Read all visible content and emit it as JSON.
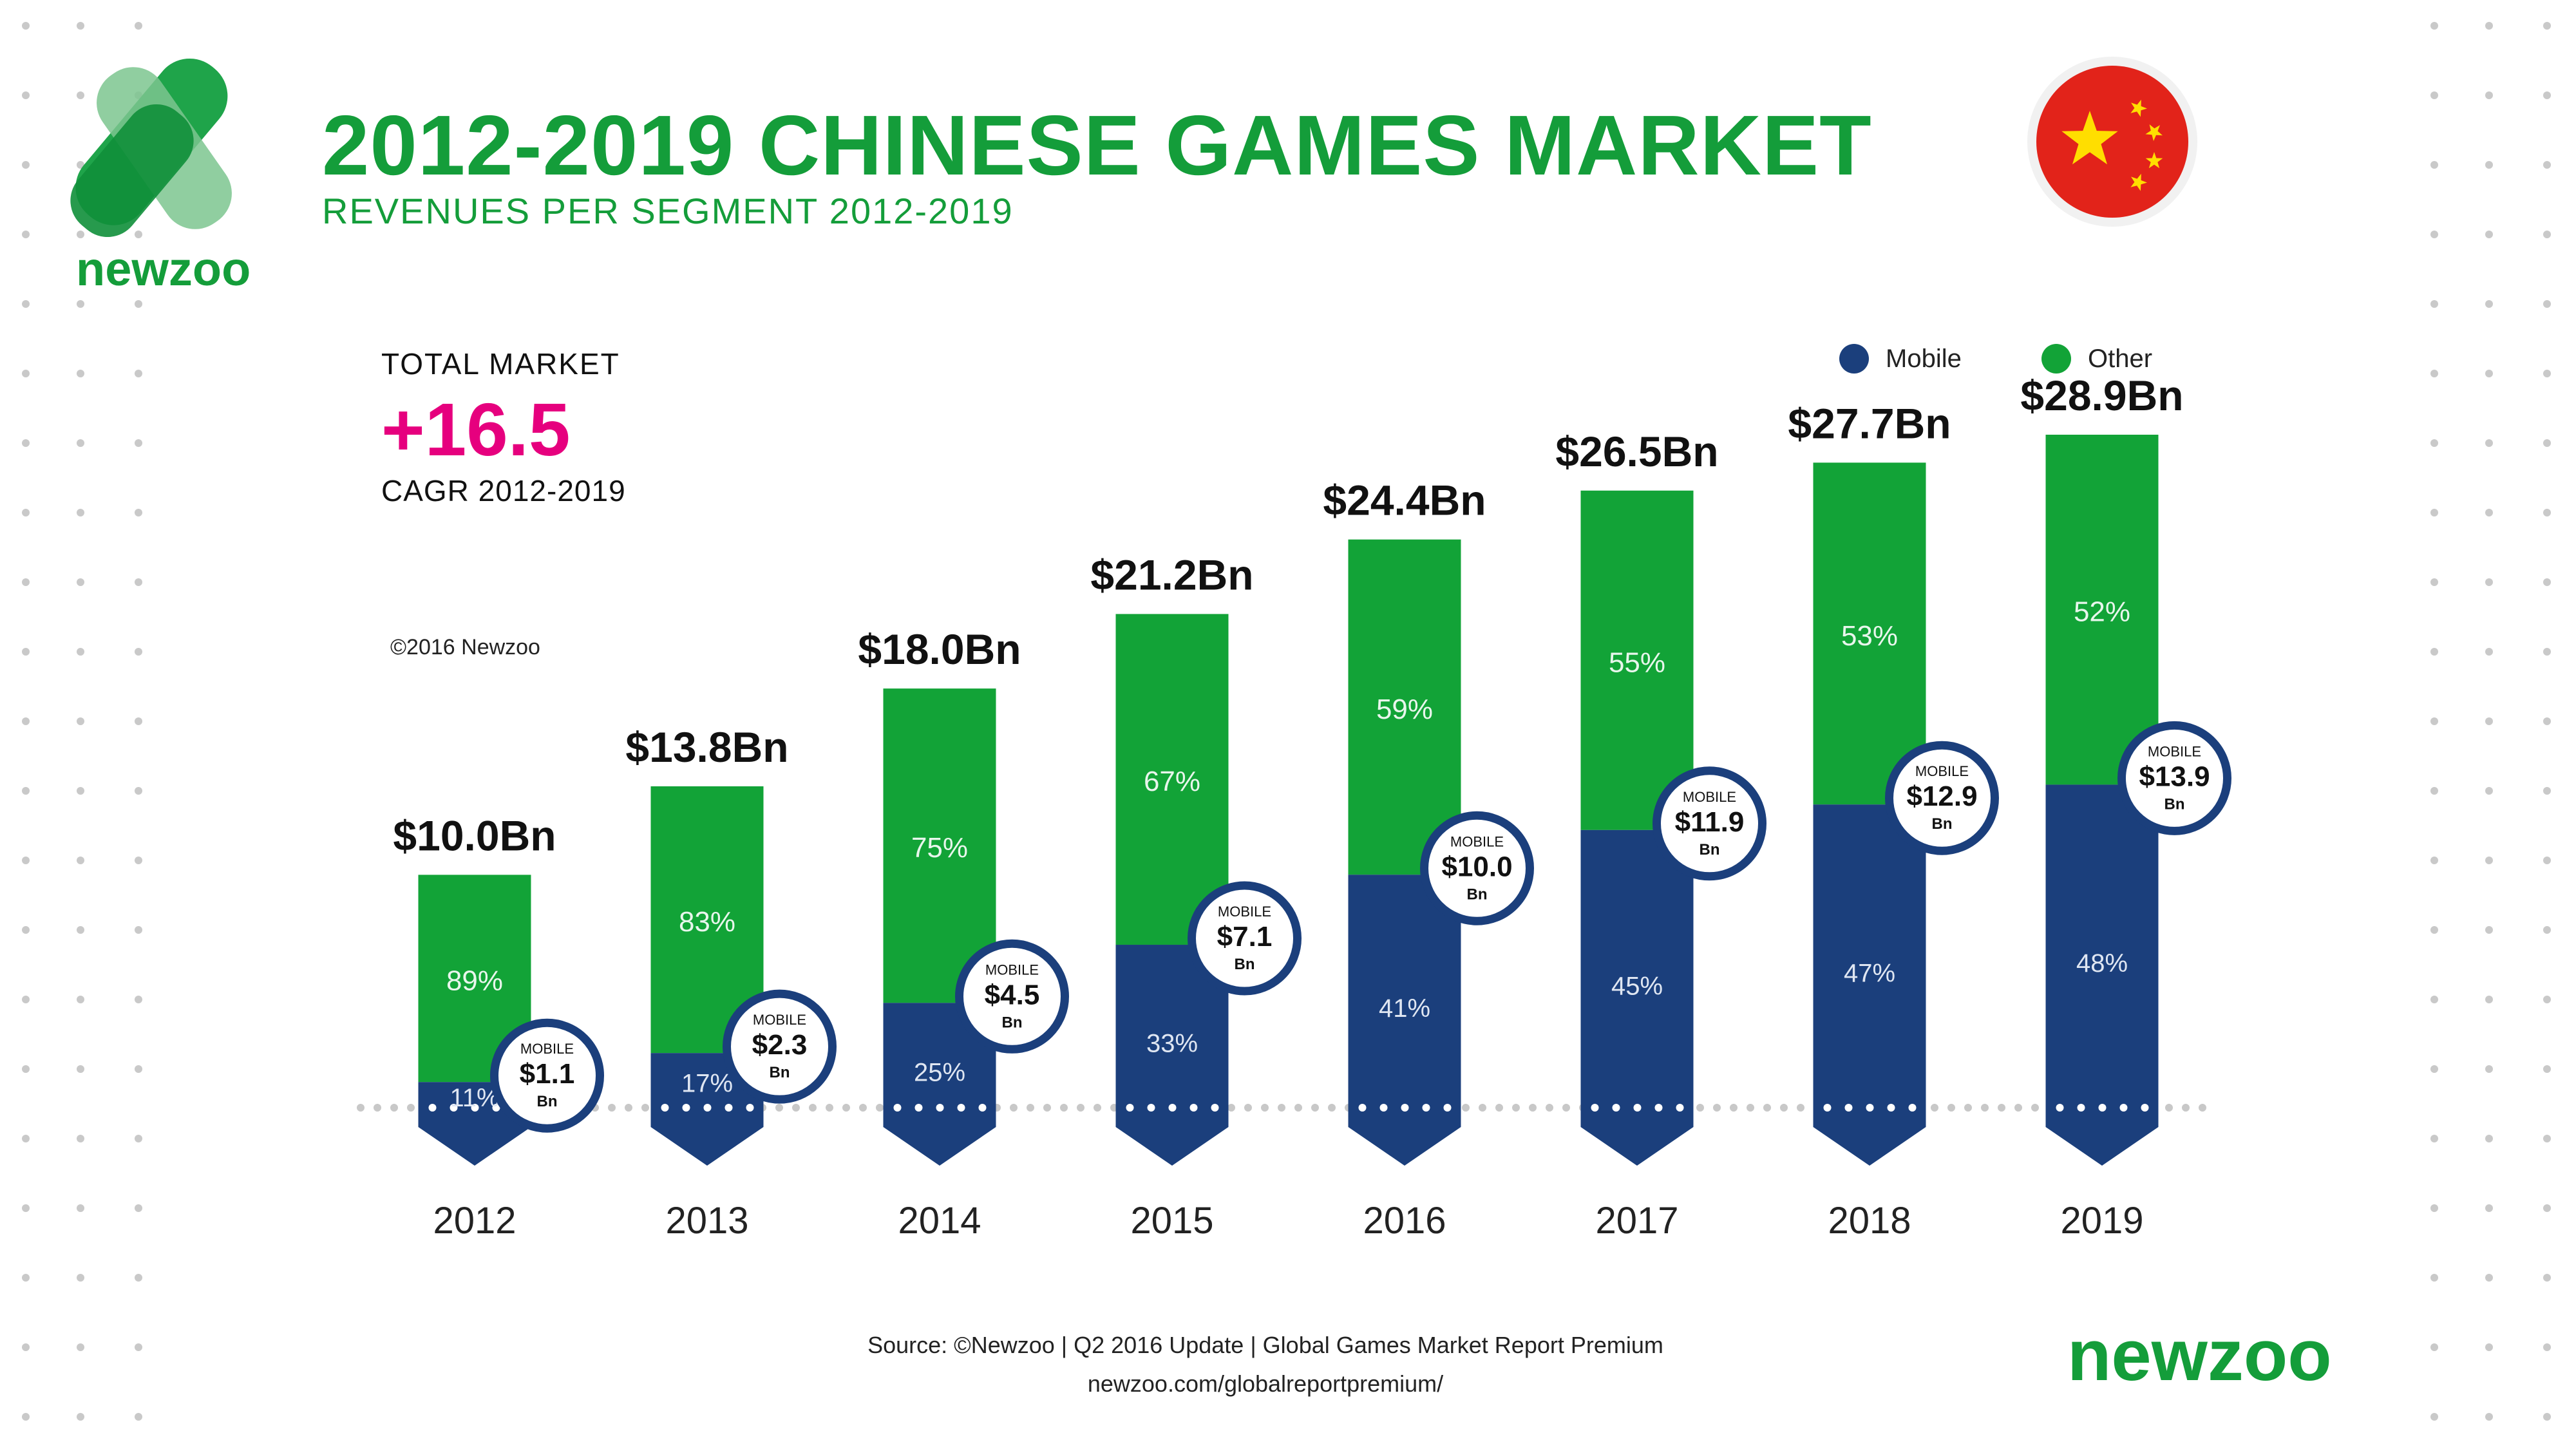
{
  "header": {
    "title": "2012-2019 CHINESE GAMES MARKET",
    "subtitle": "REVENUES PER SEGMENT 2012-2019",
    "brand_small": "newzoo",
    "flag_icon": "china-flag-icon"
  },
  "total_market": {
    "label": "TOTAL MARKET",
    "value": "+16.5",
    "caption": "CAGR 2012-2019"
  },
  "copyright": "©2016 Newzoo",
  "legend": [
    {
      "label": "Mobile",
      "color": "#1b3f7c"
    },
    {
      "label": "Other",
      "color": "#12a337"
    }
  ],
  "footer": {
    "source": "Source: ©Newzoo | Q2 2016 Update | Global Games Market Report Premium",
    "url": "newzoo.com/globalreportpremium/",
    "brand": "newzoo"
  },
  "colors": {
    "mobile": "#1b3f7c",
    "other": "#12a337",
    "brand_green": "#149d3a",
    "accent_pink": "#e6007e"
  },
  "chart_data": {
    "type": "bar",
    "stacked": true,
    "title": "2012-2019 CHINESE GAMES MARKET",
    "subtitle": "REVENUES PER SEGMENT 2012-2019",
    "units": "Bn USD",
    "categories": [
      "2012",
      "2013",
      "2014",
      "2015",
      "2016",
      "2017",
      "2018",
      "2019"
    ],
    "totals": [
      10.0,
      13.8,
      18.0,
      21.2,
      24.4,
      26.5,
      27.7,
      28.9
    ],
    "total_labels": [
      "$10.0Bn",
      "$13.8Bn",
      "$18.0Bn",
      "$21.2Bn",
      "$24.4Bn",
      "$26.5Bn",
      "$27.7Bn",
      "$28.9Bn"
    ],
    "series": [
      {
        "name": "Mobile",
        "percent": [
          11,
          17,
          25,
          33,
          41,
          45,
          47,
          48
        ],
        "percent_labels": [
          "11%",
          "17%",
          "25%",
          "33%",
          "41%",
          "45%",
          "47%",
          "48%"
        ],
        "values": [
          1.1,
          2.3,
          4.5,
          7.1,
          10.0,
          11.9,
          12.9,
          13.9
        ],
        "value_labels": [
          "$1.1",
          "$2.3",
          "$4.5",
          "$7.1",
          "$10.0",
          "$11.9",
          "$12.9",
          "$13.9"
        ]
      },
      {
        "name": "Other",
        "percent": [
          89,
          83,
          75,
          67,
          59,
          55,
          53,
          52
        ],
        "percent_labels": [
          "89%",
          "83%",
          "75%",
          "67%",
          "59%",
          "55%",
          "53%",
          "52%"
        ]
      }
    ],
    "badge_top": "MOBILE",
    "badge_bottom": "Bn",
    "legend_position": "top-right"
  }
}
